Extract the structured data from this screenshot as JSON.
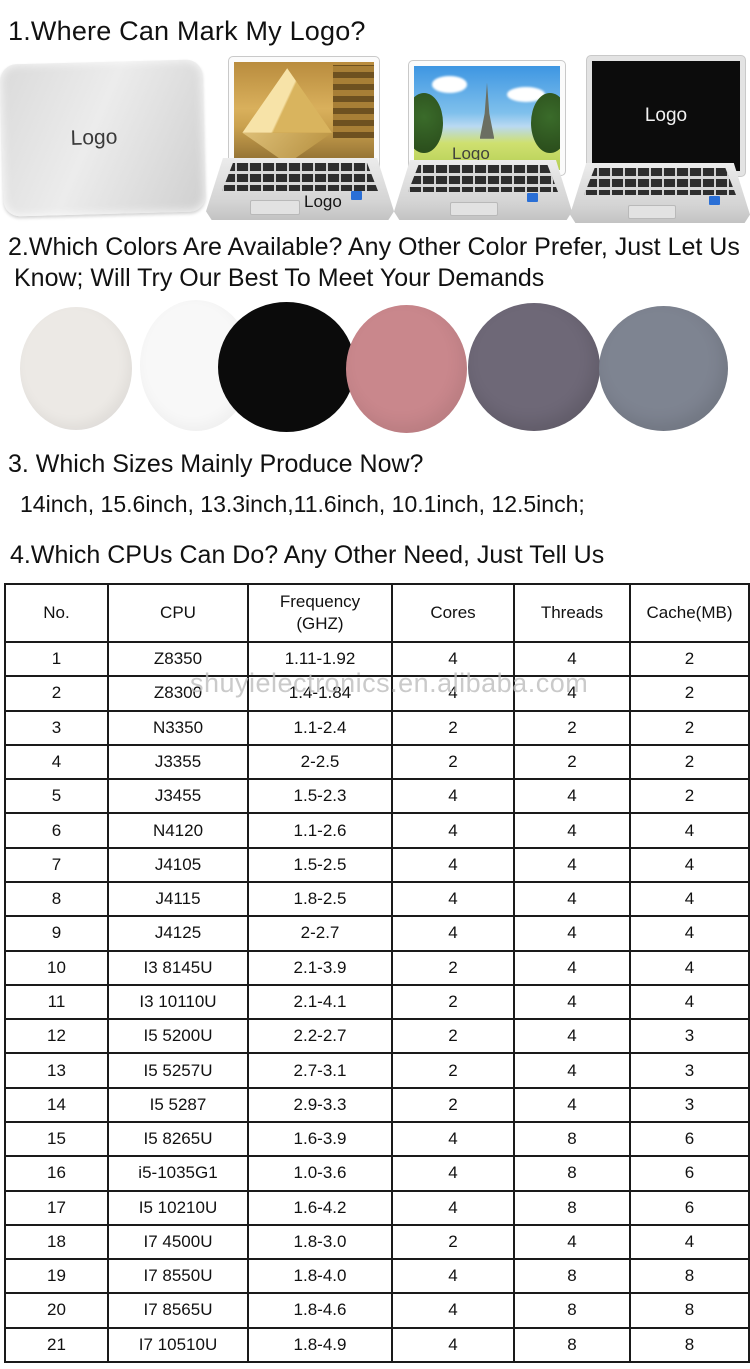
{
  "section_logo": {
    "heading": "1.Where Can Mark My Logo?",
    "laptops": [
      {
        "name": "laptop-lid-back-cover",
        "logo_label": "Logo"
      },
      {
        "name": "laptop-open-louvre-palmrest",
        "logo_label": "Logo"
      },
      {
        "name": "laptop-open-eiffel-screen-bottom",
        "logo_label": "Logo"
      },
      {
        "name": "laptop-open-black-screen-center",
        "logo_label": "Logo"
      }
    ]
  },
  "section_colors": {
    "heading_line1": "2.Which Colors Are Available? Any Other Color Prefer, Just Let Us",
    "heading_line2": "Know; Will Try Our Best To Meet Your Demands",
    "swatches": [
      {
        "name": "off-white",
        "hex": "#ECE9E5"
      },
      {
        "name": "white",
        "hex": "#F8F8F8"
      },
      {
        "name": "black",
        "hex": "#0B0B0B"
      },
      {
        "name": "rose-pink",
        "hex": "#C9878C"
      },
      {
        "name": "dark-purple-gray",
        "hex": "#6E6877"
      },
      {
        "name": "gray-blue",
        "hex": "#7E8491"
      }
    ]
  },
  "section_sizes": {
    "heading": "3. Which Sizes Mainly Produce Now?",
    "sizes_text": "14inch, 15.6inch, 13.3inch,11.6inch, 10.1inch, 12.5inch;"
  },
  "section_cpus": {
    "heading": "4.Which CPUs Can Do? Any Other Need, Just Tell Us"
  },
  "cpu_table": {
    "columns": [
      "No.",
      "CPU",
      "Frequency\n(GHZ)",
      "Cores",
      "Threads",
      "Cache(MB)"
    ],
    "rows": [
      [
        "1",
        "Z8350",
        "1.11-1.92",
        "4",
        "4",
        "2"
      ],
      [
        "2",
        "Z8300",
        "1.4-1.84",
        "4",
        "4",
        "2"
      ],
      [
        "3",
        "N3350",
        "1.1-2.4",
        "2",
        "2",
        "2"
      ],
      [
        "4",
        "J3355",
        "2-2.5",
        "2",
        "2",
        "2"
      ],
      [
        "5",
        "J3455",
        "1.5-2.3",
        "4",
        "4",
        "2"
      ],
      [
        "6",
        "N4120",
        "1.1-2.6",
        "4",
        "4",
        "4"
      ],
      [
        "7",
        "J4105",
        "1.5-2.5",
        "4",
        "4",
        "4"
      ],
      [
        "8",
        "J4115",
        "1.8-2.5",
        "4",
        "4",
        "4"
      ],
      [
        "9",
        "J4125",
        "2-2.7",
        "4",
        "4",
        "4"
      ],
      [
        "10",
        "I3 8145U",
        "2.1-3.9",
        "2",
        "4",
        "4"
      ],
      [
        "11",
        "I3 10110U",
        "2.1-4.1",
        "2",
        "4",
        "4"
      ],
      [
        "12",
        "I5 5200U",
        "2.2-2.7",
        "2",
        "4",
        "3"
      ],
      [
        "13",
        "I5 5257U",
        "2.7-3.1",
        "2",
        "4",
        "3"
      ],
      [
        "14",
        "I5 5287",
        "2.9-3.3",
        "2",
        "4",
        "3"
      ],
      [
        "15",
        "I5 8265U",
        "1.6-3.9",
        "4",
        "8",
        "6"
      ],
      [
        "16",
        "i5-1035G1",
        "1.0-3.6",
        "4",
        "8",
        "6"
      ],
      [
        "17",
        "I5 10210U",
        "1.6-4.2",
        "4",
        "8",
        "6"
      ],
      [
        "18",
        "I7 4500U",
        "1.8-3.0",
        "2",
        "4",
        "4"
      ],
      [
        "19",
        "I7 8550U",
        "1.8-4.0",
        "4",
        "8",
        "8"
      ],
      [
        "20",
        "I7 8565U",
        "1.8-4.6",
        "4",
        "8",
        "8"
      ],
      [
        "21",
        "I7 10510U",
        "1.8-4.9",
        "4",
        "8",
        "8"
      ]
    ]
  },
  "watermark": "shuyielectronics.en.alibaba.com"
}
